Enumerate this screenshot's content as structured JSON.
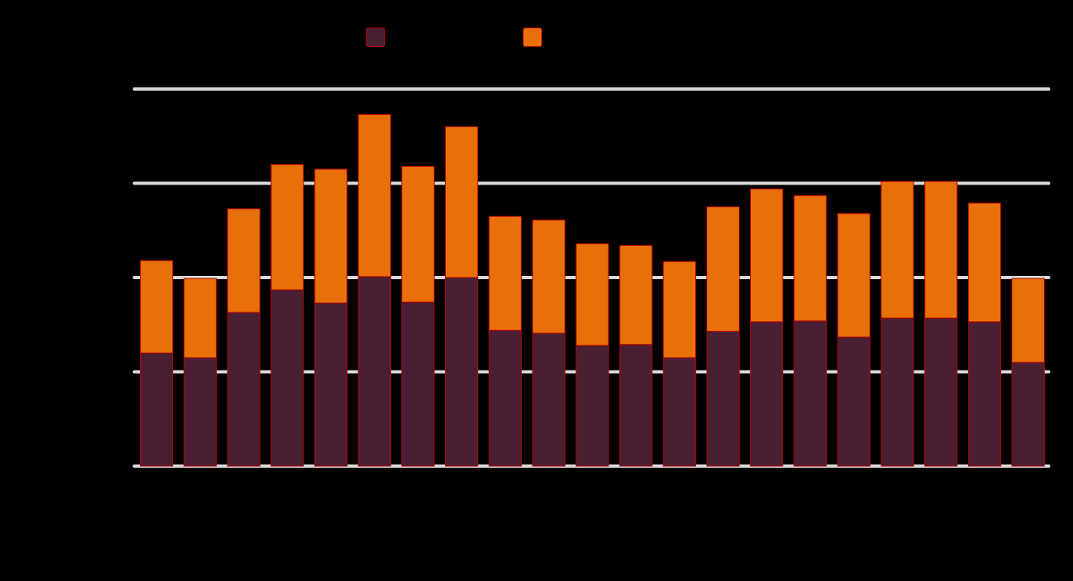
{
  "colors": {
    "background": "#000000",
    "gridline": "#d9d9d9",
    "bar_outline": "#b30000"
  },
  "legend": {
    "position": "top-center",
    "items": [
      {
        "series_index": 0,
        "color": "#4a1f33",
        "label": ""
      },
      {
        "series_index": 1,
        "color": "#e8700a",
        "label": ""
      }
    ]
  },
  "chart_data": {
    "type": "bar",
    "stacked": true,
    "title": "",
    "xlabel": "",
    "ylabel": "",
    "ylim": [
      0,
      40
    ],
    "yticks": [
      0,
      10,
      20,
      30,
      40
    ],
    "grid": true,
    "categories": [
      "",
      "",
      "",
      "",
      "",
      "",
      "",
      "",
      "",
      "",
      "",
      "",
      "",
      "",
      "",
      "",
      "",
      "",
      "",
      "",
      ""
    ],
    "series": [
      {
        "color": "#4a1f33",
        "values": [
          12.0,
          11.5,
          16.3,
          18.7,
          17.3,
          20.1,
          17.4,
          20.0,
          14.4,
          14.1,
          12.8,
          12.9,
          11.5,
          14.3,
          15.3,
          15.4,
          13.7,
          15.7,
          15.7,
          15.3,
          11.0
        ]
      },
      {
        "color": "#e8700a",
        "values": [
          9.8,
          8.4,
          11.0,
          13.3,
          14.2,
          17.2,
          14.4,
          16.0,
          12.1,
          12.0,
          10.8,
          10.5,
          10.2,
          13.2,
          14.1,
          13.3,
          13.1,
          14.5,
          14.5,
          12.6,
          8.9
        ]
      }
    ]
  }
}
